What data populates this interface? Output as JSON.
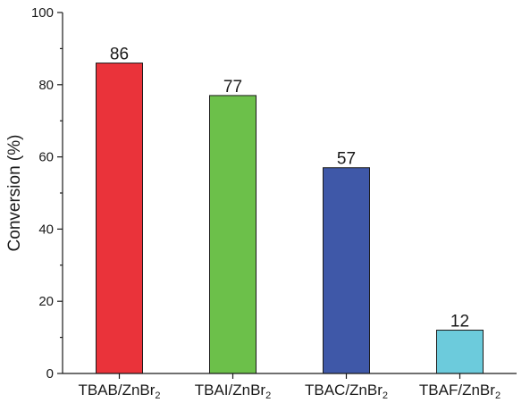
{
  "chart_data": {
    "type": "bar",
    "title": "",
    "xlabel": "",
    "ylabel": "Conversion (%)",
    "ylim": [
      0,
      100
    ],
    "yticks": [
      0,
      20,
      40,
      60,
      80,
      100
    ],
    "grid": false,
    "categories": [
      {
        "main": "TBAB/ZnBr",
        "sub": "2"
      },
      {
        "main": "TBAI/ZnBr",
        "sub": "2"
      },
      {
        "main": "TBAC/ZnBr",
        "sub": "2"
      },
      {
        "main": "TBAF/ZnBr",
        "sub": "2"
      }
    ],
    "values": [
      86,
      77,
      57,
      12
    ],
    "data_labels": [
      "86",
      "77",
      "57",
      "12"
    ],
    "colors": [
      "#ea333a",
      "#6cc04a",
      "#3f58a8",
      "#6ccbdc"
    ]
  }
}
